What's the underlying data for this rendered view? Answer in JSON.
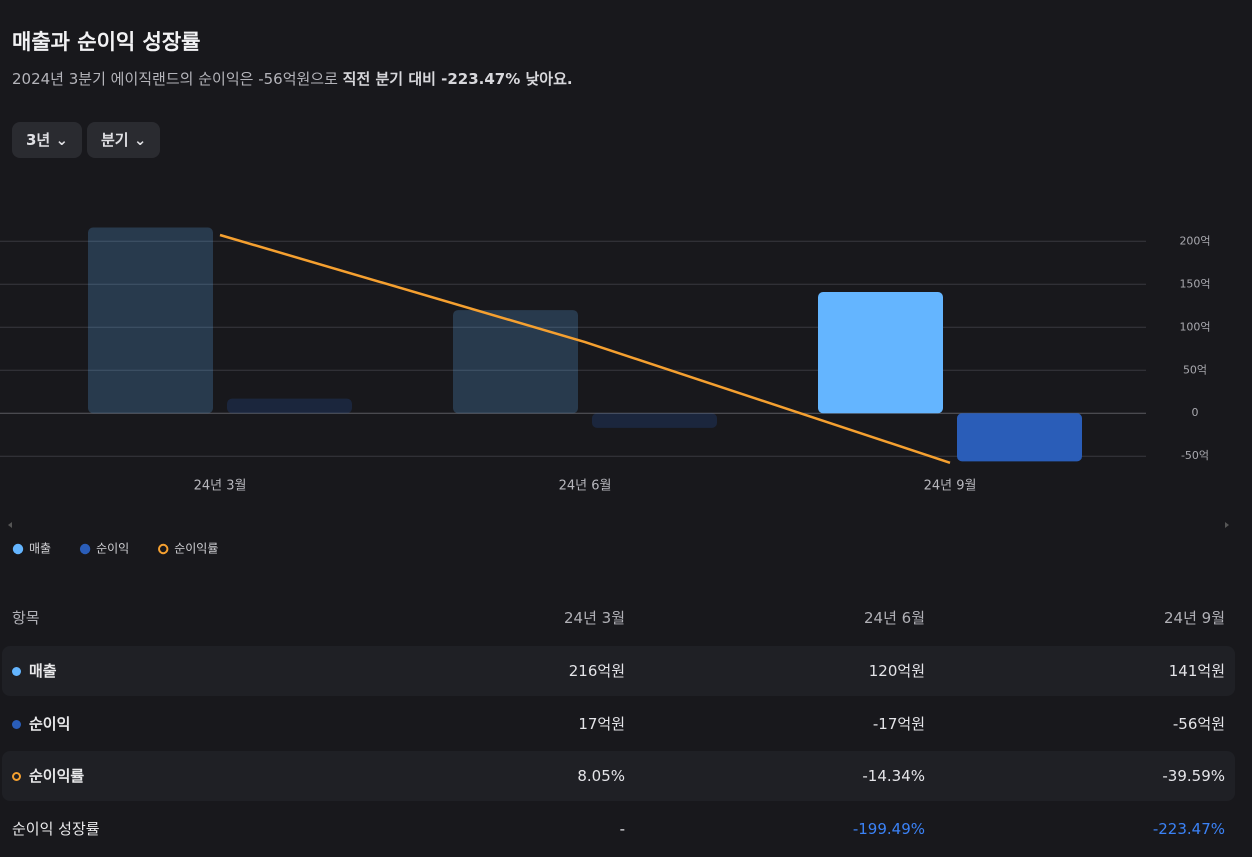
{
  "header": {
    "title": "매출과 순이익 성장률",
    "subtitle_normal": "2024년 3분기 에이직랜드의 순이익은 -56억원으로 ",
    "subtitle_bold": "직전 분기 대비 -223.47% 낮아요."
  },
  "filters": [
    "3년",
    "분기"
  ],
  "chart_data": {
    "type": "bar",
    "categories": [
      "24년 3월",
      "24년 6월",
      "24년 9월"
    ],
    "series": [
      {
        "name": "매출",
        "color": "#64b5ff",
        "values": [
          216,
          120,
          141
        ]
      },
      {
        "name": "순이익",
        "color": "#2a5db8",
        "values": [
          17,
          -17,
          -56
        ]
      },
      {
        "name": "순이익률",
        "color": "#f5a030",
        "type": "line",
        "axis": "y2",
        "values": [
          8.05,
          -14.34,
          -39.59
        ]
      }
    ],
    "ylim": [
      -66,
      248
    ],
    "yticks": [
      {
        "value": 200,
        "label": "200억"
      },
      {
        "value": 150,
        "label": "150억"
      },
      {
        "value": 100,
        "label": "100억"
      },
      {
        "value": 50,
        "label": "50억"
      },
      {
        "value": 0,
        "label": "0"
      },
      {
        "value": -50,
        "label": "-50억"
      }
    ],
    "y2lim": [
      -41.1,
      15.37
    ],
    "grid": true
  },
  "table": {
    "header_label": "항목",
    "rows": [
      [
        "216억원",
        "120억원",
        "141억원"
      ],
      [
        "17억원",
        "-17억원",
        "-56억원"
      ],
      [
        "8.05%",
        "-14.34%",
        "-39.59%"
      ]
    ],
    "growth_row": {
      "label": "순이익 성장률",
      "cells": [
        "-",
        "-199.49%",
        "-223.47%"
      ]
    }
  }
}
